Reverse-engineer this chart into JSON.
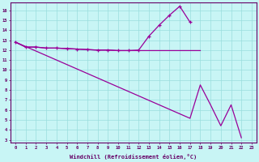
{
  "xlabel": "Windchill (Refroidissement éolien,°C)",
  "background_color": "#c8f5f5",
  "grid_color": "#99dddd",
  "line_color": "#990099",
  "x": [
    0,
    1,
    2,
    3,
    4,
    5,
    6,
    7,
    8,
    9,
    10,
    11,
    12,
    13,
    14,
    15,
    16,
    17,
    18,
    19,
    20,
    21,
    22,
    23
  ],
  "line1_y": [
    12.8,
    12.3,
    12.3,
    12.2,
    12.2,
    12.15,
    12.1,
    12.05,
    12.0,
    12.0,
    11.95,
    11.95,
    12.0,
    13.4,
    14.5,
    15.5,
    16.4,
    14.8,
    null,
    null,
    null,
    null,
    null,
    null
  ],
  "line2_y": [
    12.8,
    12.3,
    12.3,
    12.2,
    12.2,
    12.15,
    12.1,
    12.05,
    12.0,
    12.0,
    11.95,
    11.95,
    11.95,
    11.95,
    11.95,
    11.95,
    11.95,
    11.95,
    11.95,
    null,
    null,
    null,
    null,
    null
  ],
  "line3_y": [
    12.8,
    12.35,
    11.9,
    11.45,
    11.0,
    10.55,
    10.1,
    9.65,
    9.2,
    8.75,
    8.3,
    7.85,
    7.4,
    6.95,
    6.5,
    6.05,
    5.6,
    5.15,
    8.5,
    6.5,
    4.4,
    6.5,
    3.2,
    null
  ],
  "ylim_min": 3,
  "ylim_max": 16.8,
  "yticks": [
    3,
    4,
    5,
    6,
    7,
    8,
    9,
    10,
    11,
    12,
    13,
    14,
    15,
    16
  ],
  "xlim_min": -0.5,
  "xlim_max": 23.5,
  "xticks": [
    0,
    1,
    2,
    3,
    4,
    5,
    6,
    7,
    8,
    9,
    10,
    11,
    12,
    13,
    14,
    15,
    16,
    17,
    18,
    19,
    20,
    21,
    22,
    23
  ],
  "figsize": [
    3.2,
    2.0
  ],
  "dpi": 100
}
